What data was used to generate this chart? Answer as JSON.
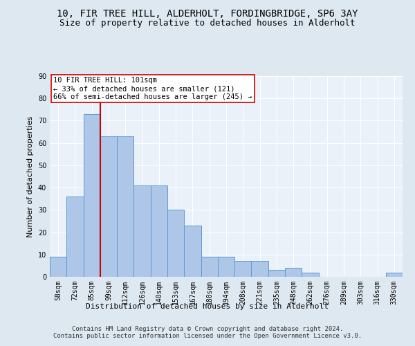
{
  "title1": "10, FIR TREE HILL, ALDERHOLT, FORDINGBRIDGE, SP6 3AY",
  "title2": "Size of property relative to detached houses in Alderholt",
  "xlabel": "Distribution of detached houses by size in Alderholt",
  "ylabel": "Number of detached properties",
  "categories": [
    "58sqm",
    "72sqm",
    "85sqm",
    "99sqm",
    "112sqm",
    "126sqm",
    "140sqm",
    "153sqm",
    "167sqm",
    "180sqm",
    "194sqm",
    "208sqm",
    "221sqm",
    "235sqm",
    "248sqm",
    "262sqm",
    "276sqm",
    "289sqm",
    "303sqm",
    "316sqm",
    "330sqm"
  ],
  "values": [
    9,
    36,
    73,
    63,
    63,
    41,
    41,
    30,
    23,
    9,
    9,
    7,
    7,
    3,
    4,
    2,
    0,
    0,
    0,
    0,
    2
  ],
  "bar_color": "#aec6e8",
  "bar_edge_color": "#5b9bd5",
  "vline_x_index": 3,
  "vline_color": "#cc0000",
  "annotation_text": "10 FIR TREE HILL: 101sqm\n← 33% of detached houses are smaller (121)\n66% of semi-detached houses are larger (245) →",
  "annotation_box_color": "white",
  "annotation_box_edge": "#cc0000",
  "ylim": [
    0,
    90
  ],
  "yticks": [
    0,
    10,
    20,
    30,
    40,
    50,
    60,
    70,
    80,
    90
  ],
  "footnote": "Contains HM Land Registry data © Crown copyright and database right 2024.\nContains public sector information licensed under the Open Government Licence v3.0.",
  "bg_color": "#dde8f0",
  "plot_bg_color": "#eaf1f8",
  "grid_color": "white",
  "title_fontsize": 10,
  "subtitle_fontsize": 9,
  "label_fontsize": 8,
  "tick_fontsize": 7,
  "annotation_fontsize": 7.5,
  "footnote_fontsize": 6.5
}
